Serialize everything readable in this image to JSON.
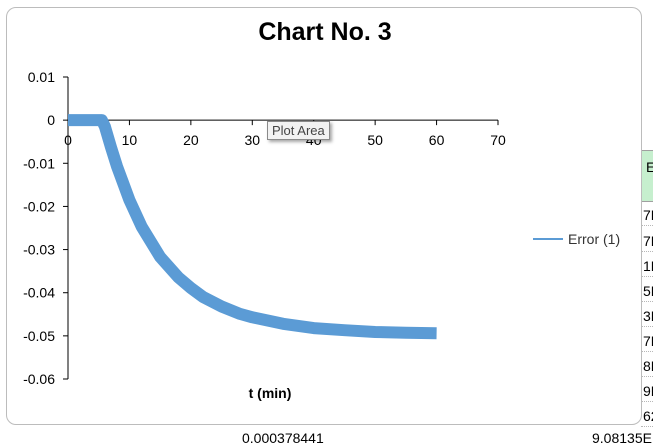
{
  "spreadsheet": {
    "header_cell": "E",
    "cells": [
      "7E",
      "7E",
      "1E",
      "5E",
      "3E",
      "7E",
      "8E",
      "9E",
      "62E"
    ],
    "bottom_left_value": "0.000378441",
    "bottom_right_value": "9.08135E"
  },
  "tooltip": "Plot Area",
  "legend": {
    "label": "Error (1)"
  },
  "colors": {
    "series": "#5b9bd5",
    "axis": "#000000"
  },
  "chart_data": {
    "type": "line",
    "title": "Chart No. 3",
    "xlabel": "t (min)",
    "ylabel": "",
    "xlim": [
      0,
      70
    ],
    "ylim": [
      -0.06,
      0.01
    ],
    "x_ticks": [
      "0",
      "10",
      "20",
      "30",
      "40",
      "50",
      "60",
      "70"
    ],
    "y_ticks": [
      "0.01",
      "0",
      "-0.01",
      "-0.02",
      "-0.03",
      "-0.04",
      "-0.05",
      "-0.06"
    ],
    "grid": false,
    "legend_position": "right",
    "series": [
      {
        "name": "Error (1)",
        "x": [
          0,
          2,
          4,
          5.5,
          6,
          7,
          8,
          10,
          12,
          15,
          18,
          20,
          22,
          25,
          28,
          30,
          35,
          40,
          45,
          50,
          55,
          60
        ],
        "y": [
          0,
          0,
          0,
          0,
          -0.0015,
          -0.0063,
          -0.0108,
          -0.0185,
          -0.0247,
          -0.0317,
          -0.0365,
          -0.0389,
          -0.041,
          -0.0432,
          -0.0449,
          -0.0457,
          -0.0472,
          -0.0482,
          -0.0487,
          -0.0491,
          -0.0493,
          -0.0494
        ]
      }
    ]
  }
}
